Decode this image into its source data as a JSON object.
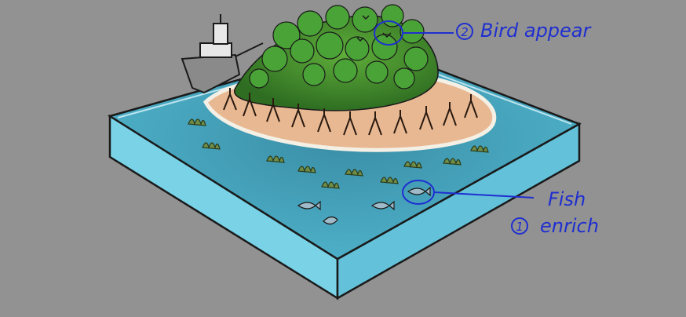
{
  "annotations": {
    "bird": {
      "number": "2",
      "label": "Bird appear"
    },
    "fish": {
      "title": "Fish",
      "number": "1",
      "label": "enrich"
    }
  },
  "colors": {
    "background": "#929292",
    "water_top": "#3f9fba",
    "water_side": "#79d2e6",
    "sand": "#e8b892",
    "forest": "#3f8a2e",
    "ink": "#1f2fd0"
  }
}
